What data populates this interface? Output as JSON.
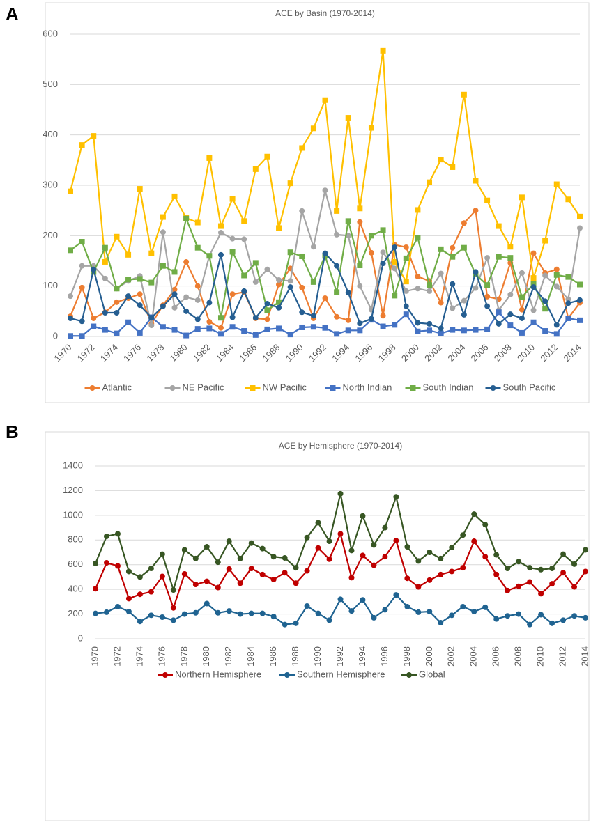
{
  "chart_data": [
    {
      "type": "line",
      "panel_label": "A",
      "title": "ACE by Basin (1970-2014)",
      "categories": [
        "1970",
        null,
        "1972",
        null,
        "1974",
        null,
        "1976",
        null,
        "1978",
        null,
        "1980",
        null,
        "1982",
        null,
        "1984",
        null,
        "1986",
        null,
        "1988",
        null,
        "1990",
        null,
        "1992",
        null,
        "1994",
        null,
        "1996",
        null,
        "1998",
        null,
        "2000",
        null,
        "2002",
        null,
        "2004",
        null,
        "2006",
        null,
        "2008",
        null,
        "2010",
        null,
        "2012",
        null,
        "2014"
      ],
      "ylim": [
        0,
        600
      ],
      "yticks": [
        0,
        100,
        200,
        300,
        400,
        500,
        600
      ],
      "grid": true,
      "legend": "bottom",
      "series": [
        {
          "name": "Atlantic",
          "color": "#ed7d31",
          "marker": "circle",
          "values": [
            40,
            97,
            36,
            48,
            68,
            76,
            84,
            25,
            62,
            93,
            148,
            100,
            29,
            17,
            84,
            88,
            36,
            34,
            103,
            135,
            97,
            36,
            76,
            39,
            32,
            227,
            166,
            41,
            182,
            177,
            119,
            110,
            67,
            176,
            225,
            250,
            79,
            74,
            146,
            53,
            165,
            126,
            133,
            36,
            67
          ]
        },
        {
          "name": "NE Pacific",
          "color": "#a5a5a5",
          "marker": "circle",
          "values": [
            80,
            140,
            140,
            115,
            95,
            110,
            120,
            22,
            207,
            57,
            78,
            72,
            160,
            206,
            194,
            193,
            108,
            133,
            112,
            110,
            249,
            178,
            290,
            202,
            200,
            100,
            53,
            167,
            135,
            90,
            95,
            90,
            125,
            56,
            71,
            96,
            156,
            52,
            83,
            126,
            52,
            121,
            99,
            74,
            215
          ]
        },
        {
          "name": "NW Pacific",
          "color": "#ffc000",
          "marker": "square",
          "values": [
            288,
            380,
            398,
            148,
            198,
            162,
            293,
            165,
            237,
            278,
            235,
            226,
            354,
            219,
            273,
            229,
            332,
            357,
            215,
            304,
            374,
            413,
            469,
            249,
            434,
            254,
            414,
            567,
            148,
            109,
            251,
            306,
            351,
            336,
            480,
            309,
            270,
            219,
            178,
            276,
            116,
            190,
            302,
            272,
            238
          ]
        },
        {
          "name": "North Indian",
          "color": "#4472c4",
          "marker": "square",
          "values": [
            1,
            1,
            20,
            13,
            6,
            28,
            7,
            38,
            19,
            13,
            2,
            15,
            16,
            5,
            19,
            11,
            3,
            14,
            16,
            4,
            18,
            19,
            17,
            5,
            12,
            12,
            33,
            20,
            23,
            44,
            10,
            12,
            6,
            13,
            12,
            13,
            14,
            48,
            22,
            7,
            28,
            11,
            5,
            36,
            32
          ]
        },
        {
          "name": "South Indian",
          "color": "#70ad47",
          "marker": "square",
          "values": [
            171,
            188,
            128,
            176,
            95,
            113,
            114,
            107,
            140,
            128,
            234,
            176,
            160,
            37,
            168,
            121,
            146,
            52,
            68,
            167,
            159,
            108,
            160,
            88,
            229,
            141,
            200,
            211,
            81,
            155,
            196,
            102,
            173,
            158,
            176,
            123,
            102,
            158,
            156,
            78,
            104,
            55,
            122,
            118,
            103
          ]
        },
        {
          "name": "South Pacific",
          "color": "#255e91",
          "marker": "circle",
          "values": [
            36,
            30,
            133,
            47,
            47,
            80,
            62,
            37,
            60,
            84,
            50,
            34,
            67,
            162,
            38,
            90,
            37,
            65,
            57,
            98,
            48,
            41,
            165,
            140,
            87,
            26,
            35,
            145,
            177,
            60,
            27,
            25,
            16,
            104,
            43,
            128,
            60,
            25,
            44,
            36,
            98,
            70,
            23,
            66,
            72
          ]
        }
      ]
    },
    {
      "type": "line",
      "panel_label": "B",
      "title": "ACE by Hemisphere (1970-2014)",
      "categories": [
        "1970",
        null,
        "1972",
        null,
        "1974",
        null,
        "1976",
        null,
        "1978",
        null,
        "1980",
        null,
        "1982",
        null,
        "1984",
        null,
        "1986",
        null,
        "1988",
        null,
        "1990",
        null,
        "1992",
        null,
        "1994",
        null,
        "1996",
        null,
        "1998",
        null,
        "2000",
        null,
        "2002",
        null,
        "2004",
        null,
        "2006",
        null,
        "2008",
        null,
        "2010",
        null,
        "2012",
        null,
        "2014"
      ],
      "ylim": [
        0,
        1400
      ],
      "yticks": [
        0,
        200,
        400,
        600,
        800,
        1000,
        1200,
        1400
      ],
      "grid": true,
      "legend": "bottom",
      "series": [
        {
          "name": "Northern Hemisphere",
          "color": "#c00000",
          "marker": "circle",
          "values": [
            405,
            615,
            590,
            325,
            360,
            380,
            505,
            250,
            525,
            440,
            465,
            415,
            565,
            450,
            570,
            520,
            480,
            535,
            450,
            550,
            735,
            645,
            850,
            495,
            675,
            595,
            665,
            795,
            490,
            420,
            475,
            520,
            545,
            575,
            790,
            665,
            520,
            390,
            425,
            460,
            365,
            445,
            535,
            420,
            545
          ]
        },
        {
          "name": "Southern Hemisphere",
          "color": "#1f6391",
          "marker": "circle",
          "values": [
            205,
            215,
            260,
            220,
            140,
            190,
            175,
            150,
            200,
            210,
            285,
            210,
            225,
            200,
            205,
            205,
            180,
            115,
            125,
            265,
            205,
            150,
            320,
            225,
            315,
            170,
            235,
            355,
            260,
            215,
            220,
            130,
            190,
            260,
            220,
            255,
            160,
            185,
            200,
            115,
            195,
            125,
            150,
            185,
            170
          ]
        },
        {
          "name": "Global",
          "color": "#375623",
          "marker": "circle",
          "values": [
            610,
            830,
            850,
            545,
            500,
            570,
            685,
            395,
            720,
            650,
            745,
            620,
            790,
            650,
            775,
            730,
            665,
            655,
            575,
            820,
            940,
            790,
            1175,
            715,
            995,
            760,
            900,
            1150,
            745,
            630,
            700,
            650,
            740,
            840,
            1010,
            925,
            680,
            570,
            625,
            575,
            560,
            570,
            685,
            605,
            720
          ]
        }
      ]
    }
  ]
}
